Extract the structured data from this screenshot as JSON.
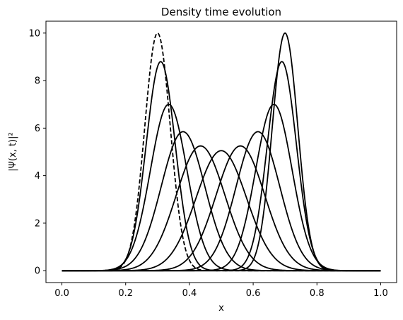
{
  "chart_data": {
    "type": "line",
    "title": "Density time evolution",
    "xlabel": "x",
    "ylabel": "|Ψ(x, t)|²",
    "xlim": [
      -0.05,
      1.05
    ],
    "ylim": [
      -0.5,
      10.5
    ],
    "xticks": [
      "0.0",
      "0.2",
      "0.4",
      "0.6",
      "0.8",
      "1.0"
    ],
    "yticks": [
      "0",
      "2",
      "4",
      "6",
      "8",
      "10"
    ],
    "grid": false,
    "line_color": "#000000",
    "x_domain": [
      0.0,
      1.0
    ],
    "series": [
      {
        "peak_x": 0.3,
        "peak_y": 10.0,
        "style": "dashed"
      },
      {
        "peak_x": 0.31,
        "peak_y": 8.8,
        "style": "solid"
      },
      {
        "peak_x": 0.335,
        "peak_y": 7.0,
        "style": "solid"
      },
      {
        "peak_x": 0.38,
        "peak_y": 5.85,
        "style": "solid"
      },
      {
        "peak_x": 0.435,
        "peak_y": 5.25,
        "style": "solid"
      },
      {
        "peak_x": 0.5,
        "peak_y": 5.05,
        "style": "solid"
      },
      {
        "peak_x": 0.56,
        "peak_y": 5.25,
        "style": "solid"
      },
      {
        "peak_x": 0.615,
        "peak_y": 5.85,
        "style": "solid"
      },
      {
        "peak_x": 0.665,
        "peak_y": 7.0,
        "style": "solid"
      },
      {
        "peak_x": 0.69,
        "peak_y": 8.8,
        "style": "solid"
      },
      {
        "peak_x": 0.7,
        "peak_y": 10.0,
        "style": "solid"
      }
    ]
  }
}
